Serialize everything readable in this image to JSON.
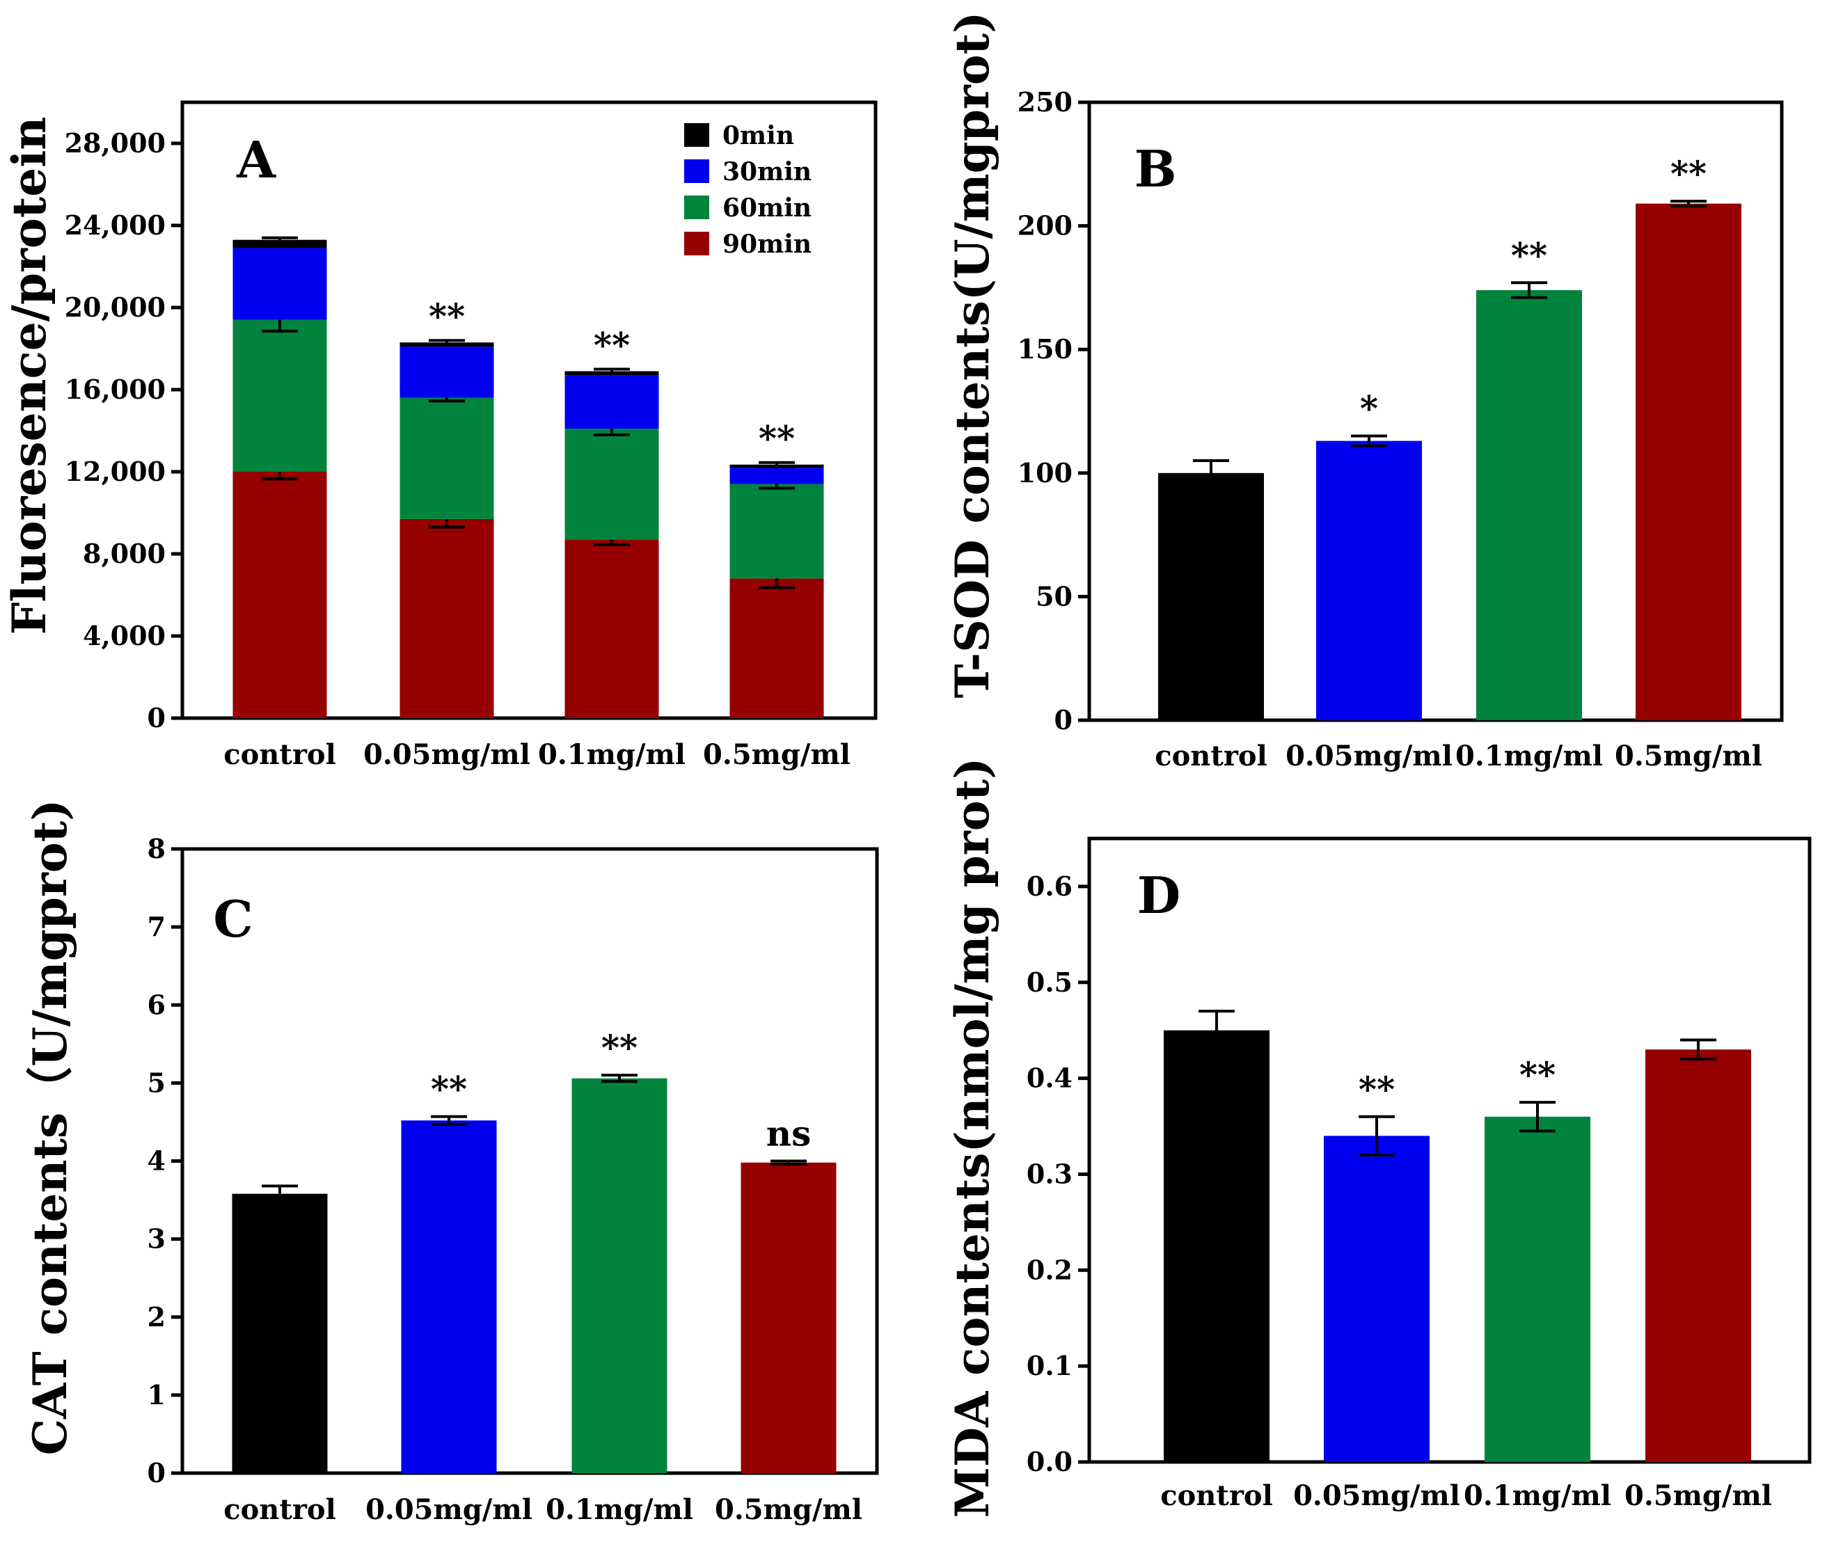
{
  "chart_data": [
    {
      "panel": "A",
      "type": "bar",
      "stacked": true,
      "ylabel": "Fluoresence/protein",
      "ylim": [
        0,
        30000
      ],
      "yticks": [
        0,
        4000,
        8000,
        12000,
        16000,
        20000,
        24000,
        28000
      ],
      "ytick_labels": [
        "0",
        "4,000",
        "8,000",
        "12,000",
        "16,000",
        "20,000",
        "24,000",
        "28,000"
      ],
      "categories": [
        "control",
        "0.05mg/ml",
        "0.1mg/ml",
        "0.5mg/ml"
      ],
      "series": [
        {
          "name": "90min",
          "color": "#960000",
          "values": [
            12000,
            9700,
            8700,
            6800
          ],
          "errors": [
            350,
            400,
            250,
            450
          ]
        },
        {
          "name": "60min",
          "color": "#00843d",
          "values": [
            7400,
            5900,
            5400,
            4600
          ],
          "errors": [
            550,
            150,
            300,
            200
          ]
        },
        {
          "name": "30min",
          "color": "#0000f0",
          "values": [
            3500,
            2500,
            2600,
            800
          ],
          "errors": [
            0,
            0,
            0,
            0
          ]
        },
        {
          "name": "0min",
          "color": "#000000",
          "values": [
            400,
            200,
            200,
            150
          ],
          "errors": [
            100,
            100,
            100,
            100
          ]
        }
      ],
      "significance": [
        "",
        "**",
        "**",
        "**"
      ],
      "legend": [
        "0min",
        "30min",
        "60min",
        "90min"
      ],
      "legend_colors": [
        "#000000",
        "#0000f0",
        "#00843d",
        "#960000"
      ],
      "legend_position": "top-right"
    },
    {
      "panel": "B",
      "type": "bar",
      "ylabel": "T-SOD contents(U/mgprot)",
      "ylim": [
        0,
        250
      ],
      "yticks": [
        0,
        50,
        100,
        150,
        200,
        250
      ],
      "ytick_labels": [
        "0",
        "50",
        "100",
        "150",
        "200",
        "250"
      ],
      "categories": [
        "control",
        "0.05mg/ml",
        "0.1mg/ml",
        "0.5mg/ml"
      ],
      "values": [
        100,
        113,
        174,
        209
      ],
      "errors": [
        5,
        2,
        3,
        1
      ],
      "colors": [
        "#000000",
        "#0000f0",
        "#00843d",
        "#960000"
      ],
      "significance": [
        "",
        "*",
        "**",
        "**"
      ]
    },
    {
      "panel": "C",
      "type": "bar",
      "ylabel": "CAT contents（U/mgprot)",
      "ylim": [
        0,
        8
      ],
      "yticks": [
        0,
        1,
        2,
        3,
        4,
        5,
        6,
        7,
        8
      ],
      "ytick_labels": [
        "0",
        "1",
        "2",
        "3",
        "4",
        "5",
        "6",
        "7",
        "8"
      ],
      "categories": [
        "control",
        "0.05mg/ml",
        "0.1mg/ml",
        "0.5mg/ml"
      ],
      "values": [
        3.58,
        4.52,
        5.06,
        3.98
      ],
      "errors": [
        0.1,
        0.05,
        0.04,
        0.02
      ],
      "colors": [
        "#000000",
        "#0000f0",
        "#00843d",
        "#960000"
      ],
      "significance": [
        "",
        "**",
        "**",
        "ns"
      ]
    },
    {
      "panel": "D",
      "type": "bar",
      "ylabel": "MDA contents(nmol/mg prot)",
      "ylim": [
        0,
        0.65
      ],
      "yticks": [
        0,
        0.1,
        0.2,
        0.3,
        0.4,
        0.5,
        0.6
      ],
      "ytick_labels": [
        "0.0",
        "0.1",
        "0.2",
        "0.3",
        "0.4",
        "0.5",
        "0.6"
      ],
      "categories": [
        "control",
        "0.05mg/ml",
        "0.1mg/ml",
        "0.5mg/ml"
      ],
      "values": [
        0.45,
        0.34,
        0.36,
        0.43
      ],
      "errors": [
        0.02,
        0.02,
        0.015,
        0.01
      ],
      "colors": [
        "#000000",
        "#0000f0",
        "#00843d",
        "#960000"
      ],
      "significance": [
        "",
        "**",
        "**",
        ""
      ]
    }
  ]
}
